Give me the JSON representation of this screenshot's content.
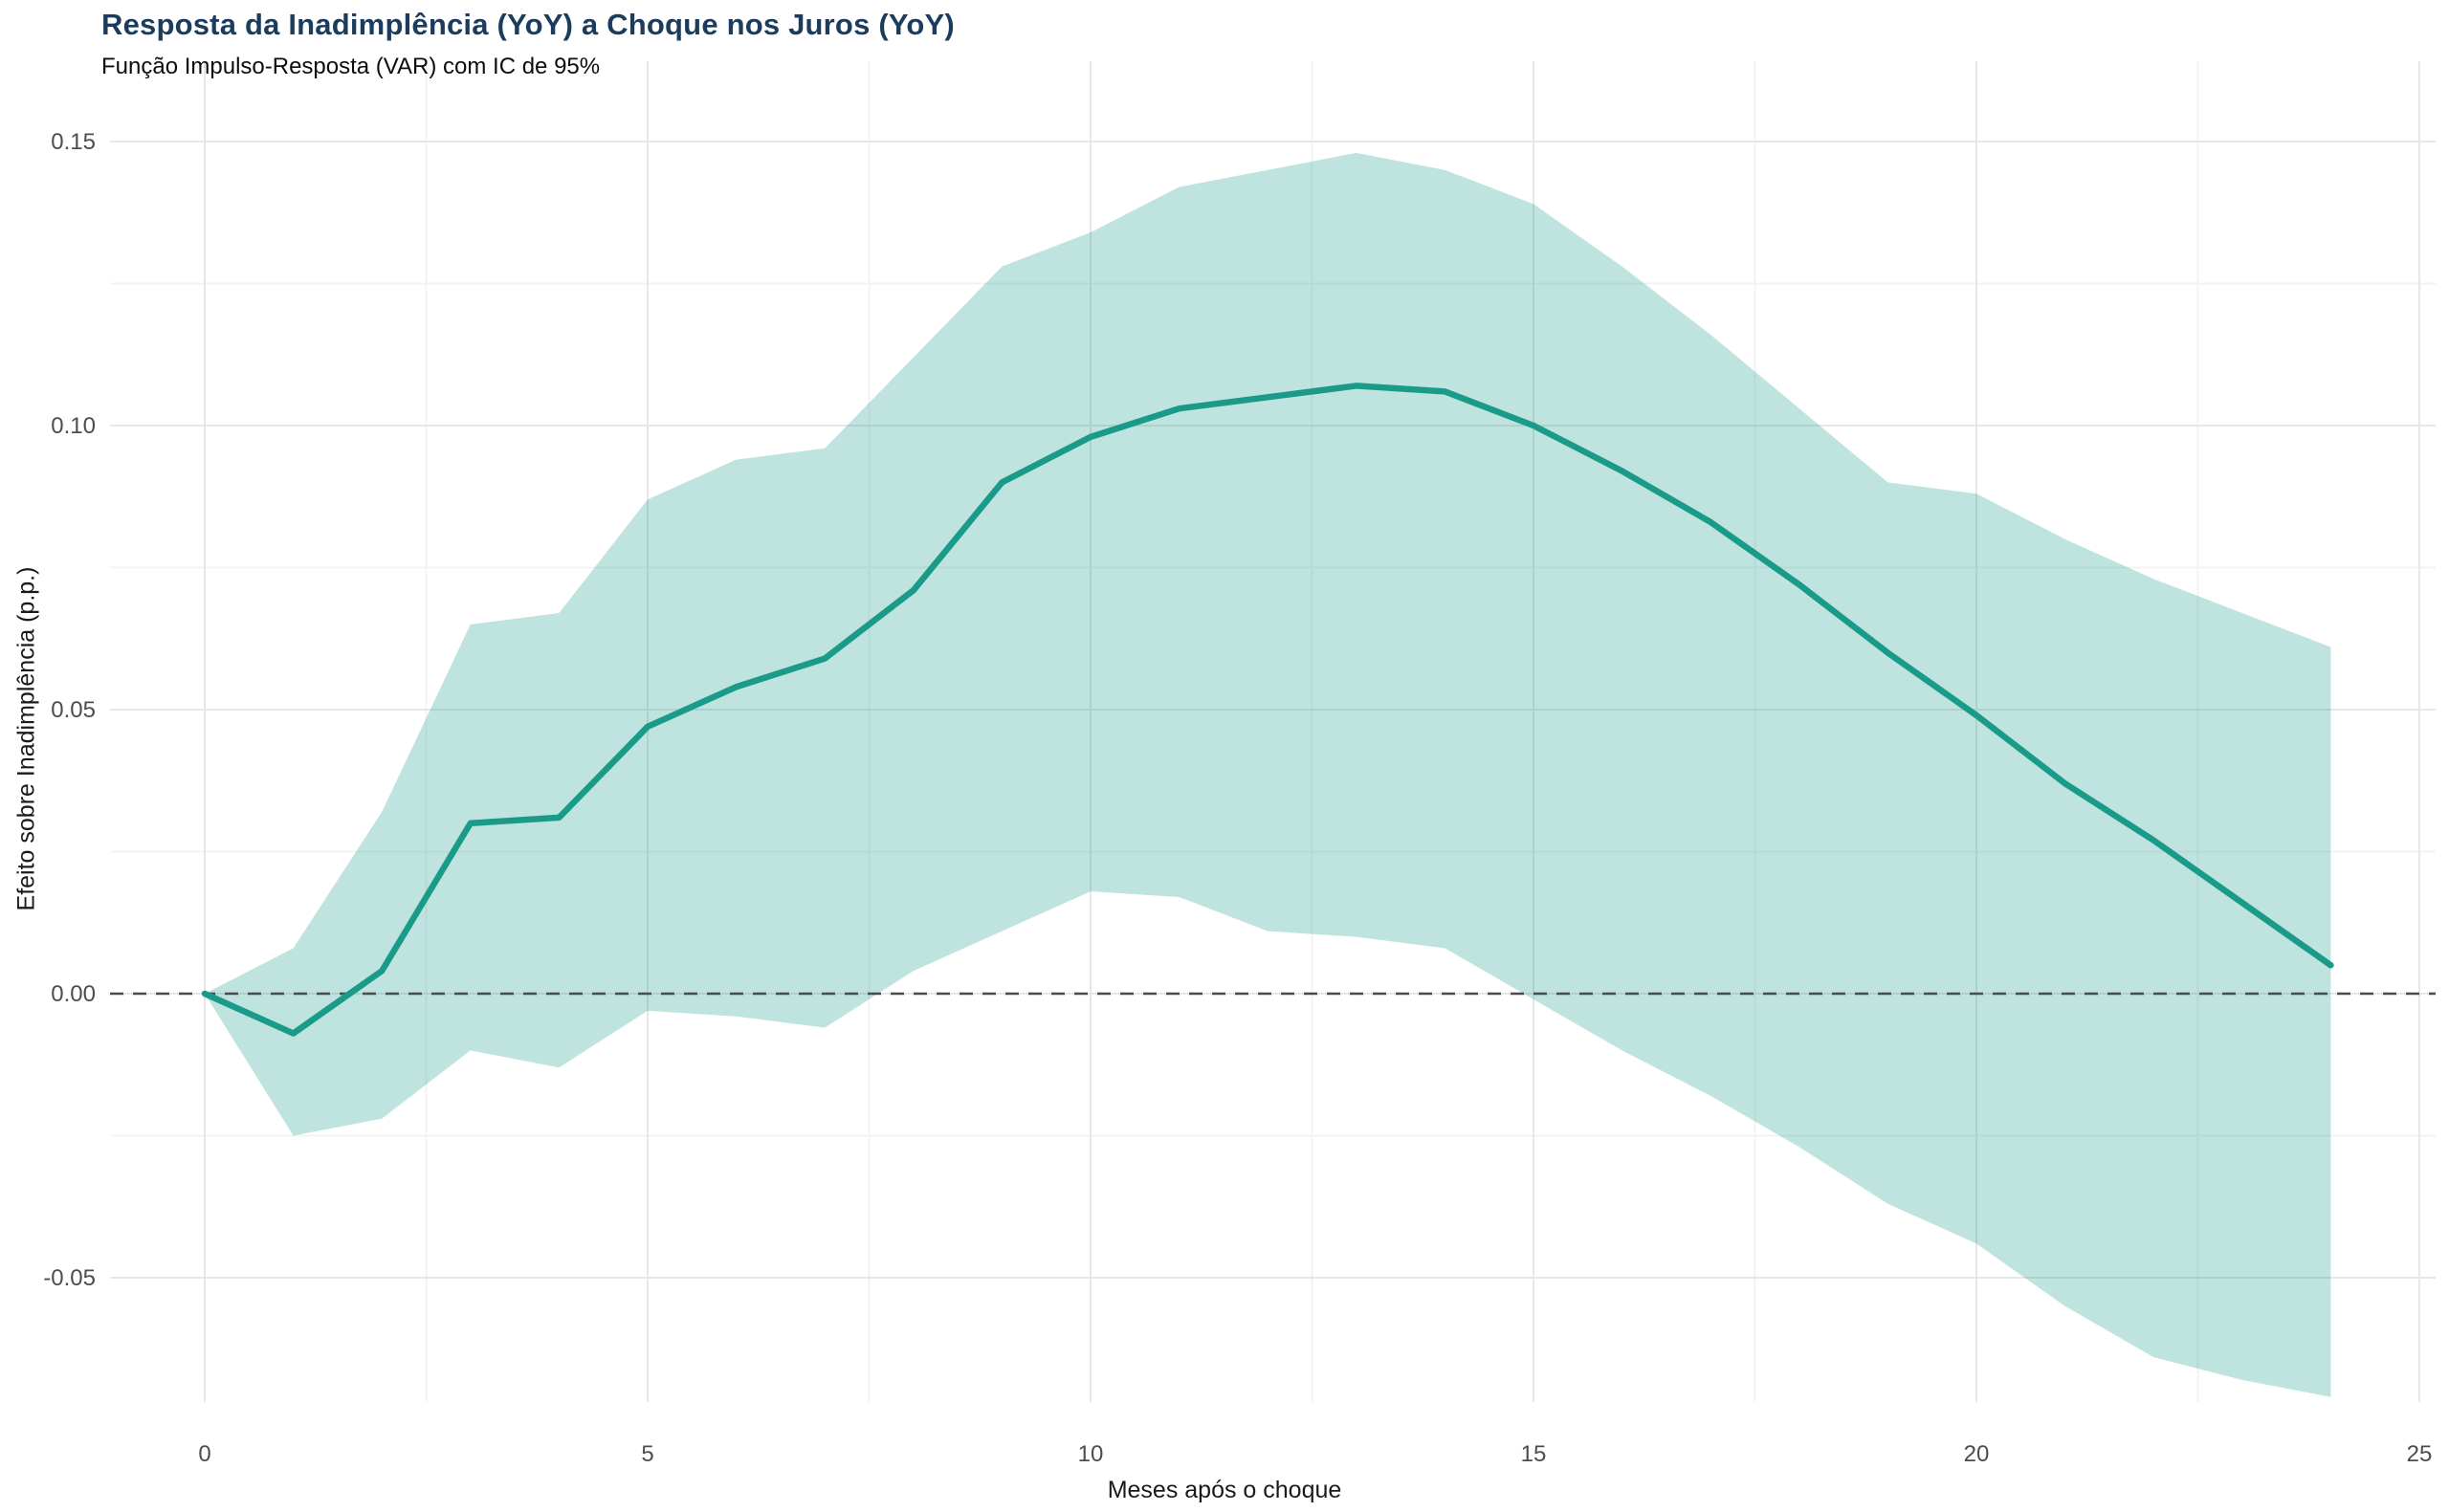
{
  "header": {
    "title": "Resposta da Inadimplência (YoY) a Choque nos Juros (YoY)",
    "subtitle": "Função Impulso-Resposta (VAR) com IC de 95%"
  },
  "chart_data": {
    "type": "line",
    "title": "Resposta da Inadimplência (YoY) a Choque nos Juros (YoY)",
    "subtitle": "Função Impulso-Resposta (VAR) com IC de 95%",
    "xlabel": "Meses após o choque",
    "ylabel": "Efeito sobre Inadimplência (p.p.)",
    "x": [
      0,
      1,
      2,
      3,
      4,
      5,
      6,
      7,
      8,
      9,
      10,
      11,
      12,
      13,
      14,
      15,
      16,
      17,
      18,
      19,
      20,
      21,
      22,
      23,
      24
    ],
    "series": [
      {
        "name": "irf",
        "values": [
          0.0,
          -0.007,
          0.004,
          0.03,
          0.031,
          0.047,
          0.054,
          0.059,
          0.071,
          0.09,
          0.098,
          0.103,
          0.105,
          0.107,
          0.106,
          0.1,
          0.092,
          0.083,
          0.072,
          0.06,
          0.049,
          0.037,
          0.027,
          0.016,
          0.005
        ]
      },
      {
        "name": "ci_upper_95",
        "values": [
          0.0,
          0.008,
          0.032,
          0.065,
          0.067,
          0.087,
          0.094,
          0.096,
          0.112,
          0.128,
          0.134,
          0.142,
          0.145,
          0.148,
          0.145,
          0.139,
          0.128,
          0.116,
          0.103,
          0.09,
          0.088,
          0.08,
          0.073,
          0.067,
          0.061
        ]
      },
      {
        "name": "ci_lower_95",
        "values": [
          0.0,
          -0.025,
          -0.022,
          -0.01,
          -0.013,
          -0.003,
          -0.004,
          -0.006,
          0.004,
          0.011,
          0.018,
          0.017,
          0.011,
          0.01,
          0.008,
          -0.001,
          -0.01,
          -0.018,
          -0.027,
          -0.037,
          -0.044,
          -0.055,
          -0.064,
          -0.068,
          -0.071
        ]
      }
    ],
    "x_ticks": [
      0,
      5,
      10,
      15,
      20,
      25
    ],
    "x_tick_labels": [
      "0",
      "5",
      "10",
      "15",
      "20",
      "25"
    ],
    "y_ticks": [
      -0.05,
      0.0,
      0.05,
      0.1,
      0.15
    ],
    "y_tick_labels": [
      "-0.05",
      "0.00",
      "0.05",
      "0.10",
      "0.15"
    ],
    "xlim": [
      -1.07,
      25.18
    ],
    "ylim": [
      -0.0719,
      0.1641
    ],
    "grid": "on",
    "legend": "none",
    "zero_reference_line": 0.0,
    "colors": {
      "line": "#1a9b8a",
      "band_fill": "rgba(26,154,136,0.28)",
      "zero_line": "#4a4a4a",
      "grid_major": "#e7e7e7",
      "grid_minor": "#f3f3f3",
      "title": "#1c3c5e",
      "tick_text": "#4d4d4d"
    }
  }
}
